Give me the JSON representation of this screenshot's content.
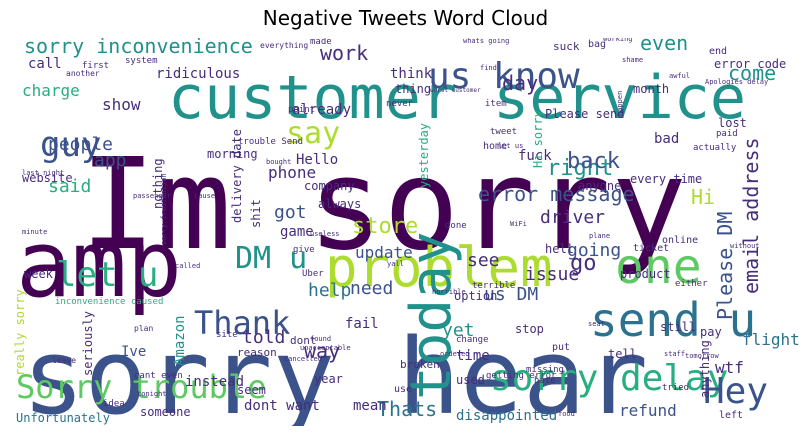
{
  "title": "Negative Tweets Word Cloud",
  "palette": [
    "#440154",
    "#472d7b",
    "#3b528b",
    "#2c728e",
    "#21918c",
    "#28ae80",
    "#5ec962",
    "#addc30",
    "#fde725"
  ],
  "words": [
    {
      "text": "Im sorry",
      "color": "#440154"
    },
    {
      "text": "customer service",
      "color": "#21918c"
    },
    {
      "text": "sorry hear",
      "color": "#3b528b"
    },
    {
      "text": "amp",
      "color": "#440154"
    },
    {
      "text": "problem",
      "color": "#addc30"
    },
    {
      "text": "today",
      "color": "#21918c"
    },
    {
      "text": "one",
      "color": "#5ec962"
    },
    {
      "text": "send u",
      "color": "#2c728e"
    },
    {
      "text": "us know",
      "color": "#3b528b"
    },
    {
      "text": "Sorry trouble",
      "color": "#5ec962"
    },
    {
      "text": "sorry delay",
      "color": "#28ae80"
    },
    {
      "text": "Hey",
      "color": "#3b528b"
    },
    {
      "text": "Thank",
      "color": "#3b528b"
    },
    {
      "text": "let u",
      "color": "#28ae80"
    },
    {
      "text": "DM u",
      "color": "#21918c"
    },
    {
      "text": "say",
      "color": "#addc30"
    },
    {
      "text": "guy",
      "color": "#3b528b"
    },
    {
      "text": "sorry inconvenience",
      "color": "#21918c"
    },
    {
      "text": "store",
      "color": "#addc30"
    },
    {
      "text": "work",
      "color": "#472d7b"
    },
    {
      "text": "day",
      "color": "#472d7b"
    },
    {
      "text": "right",
      "color": "#21918c"
    },
    {
      "text": "back",
      "color": "#3b528b"
    },
    {
      "text": "come",
      "color": "#21918c"
    },
    {
      "text": "even",
      "color": "#21918c"
    },
    {
      "text": "error message",
      "color": "#3b528b"
    },
    {
      "text": "Please DM",
      "color": "#3b528b"
    },
    {
      "text": "email address",
      "color": "#472d7b"
    },
    {
      "text": "driver",
      "color": "#472d7b"
    },
    {
      "text": "going",
      "color": "#3b528b"
    },
    {
      "text": "go",
      "color": "#472d7b"
    },
    {
      "text": "issue",
      "color": "#472d7b"
    },
    {
      "text": "us DM",
      "color": "#3b528b"
    },
    {
      "text": "see",
      "color": "#472d7b"
    },
    {
      "text": "update",
      "color": "#3b528b"
    },
    {
      "text": "need",
      "color": "#3b528b"
    },
    {
      "text": "help",
      "color": "#2c728e"
    },
    {
      "text": "way",
      "color": "#472d7b"
    },
    {
      "text": "told",
      "color": "#472d7b"
    },
    {
      "text": "yet",
      "color": "#21918c"
    },
    {
      "text": "Thats",
      "color": "#2c728e"
    },
    {
      "text": "refund",
      "color": "#3b528b"
    },
    {
      "text": "wtf",
      "color": "#472d7b"
    },
    {
      "text": "flight",
      "color": "#2c728e"
    },
    {
      "text": "people",
      "color": "#3b528b"
    },
    {
      "text": "app",
      "color": "#3b528b"
    },
    {
      "text": "said",
      "color": "#28ae80"
    },
    {
      "text": "charge",
      "color": "#28ae80"
    },
    {
      "text": "show",
      "color": "#472d7b"
    },
    {
      "text": "call",
      "color": "#472d7b"
    },
    {
      "text": "phone",
      "color": "#472d7b"
    },
    {
      "text": "got",
      "color": "#3b528b"
    },
    {
      "text": "game",
      "color": "#472d7b"
    },
    {
      "text": "Hello",
      "color": "#472d7b"
    },
    {
      "text": "already",
      "color": "#472d7b"
    },
    {
      "text": "think",
      "color": "#472d7b"
    },
    {
      "text": "thing",
      "color": "#472d7b"
    },
    {
      "text": "ridiculous",
      "color": "#472d7b"
    },
    {
      "text": "Hi",
      "color": "#addc30"
    },
    {
      "text": "fuck",
      "color": "#472d7b"
    },
    {
      "text": "bad",
      "color": "#472d7b"
    },
    {
      "text": "every time",
      "color": "#472d7b"
    },
    {
      "text": "error code",
      "color": "#472d7b"
    },
    {
      "text": "month",
      "color": "#472d7b"
    },
    {
      "text": "Ive",
      "color": "#3b528b"
    },
    {
      "text": "Amazon",
      "color": "#21918c"
    },
    {
      "text": "instead",
      "color": "#472d7b"
    },
    {
      "text": "seem",
      "color": "#472d7b"
    },
    {
      "text": "dont want",
      "color": "#472d7b"
    },
    {
      "text": "mean",
      "color": "#472d7b"
    },
    {
      "text": "disappointed",
      "color": "#2c728e"
    },
    {
      "text": "time",
      "color": "#472d7b"
    },
    {
      "text": "fail",
      "color": "#472d7b"
    },
    {
      "text": "week",
      "color": "#472d7b"
    },
    {
      "text": "really sorry",
      "color": "#addc30"
    },
    {
      "text": "seriously",
      "color": "#472d7b"
    },
    {
      "text": "Unfortunately",
      "color": "#2c728e"
    },
    {
      "text": "inconvenience caused",
      "color": "#28ae80"
    },
    {
      "text": "someone",
      "color": "#472d7b"
    },
    {
      "text": "year",
      "color": "#472d7b"
    },
    {
      "text": "delivery date",
      "color": "#472d7b"
    },
    {
      "text": "nothing",
      "color": "#472d7b"
    },
    {
      "text": "morning",
      "color": "#472d7b"
    },
    {
      "text": "always",
      "color": "#472d7b"
    },
    {
      "text": "shit",
      "color": "#472d7b"
    },
    {
      "text": "website",
      "color": "#472d7b"
    },
    {
      "text": "yesterday",
      "color": "#28ae80"
    },
    {
      "text": "anyone",
      "color": "#472d7b"
    },
    {
      "text": "company",
      "color": "#472d7b"
    },
    {
      "text": "anything",
      "color": "#472d7b"
    },
    {
      "text": "pay",
      "color": "#472d7b"
    },
    {
      "text": "tell",
      "color": "#472d7b"
    },
    {
      "text": "stop",
      "color": "#472d7b"
    },
    {
      "text": "option",
      "color": "#472d7b"
    },
    {
      "text": "product",
      "color": "#472d7b"
    },
    {
      "text": "used",
      "color": "#472d7b"
    },
    {
      "text": "hell",
      "color": "#472d7b"
    },
    {
      "text": "still",
      "color": "#472d7b"
    },
    {
      "text": "lost",
      "color": "#472d7b"
    },
    {
      "text": "Hi sorry",
      "color": "#28ae80"
    },
    {
      "text": "Please send",
      "color": "#472d7b"
    },
    {
      "text": "home",
      "color": "#472d7b"
    },
    {
      "text": "suck",
      "color": "#472d7b"
    },
    {
      "text": "made",
      "color": "#472d7b"
    },
    {
      "text": "system",
      "color": "#472d7b"
    },
    {
      "text": "first",
      "color": "#472d7b"
    },
    {
      "text": "another",
      "color": "#472d7b"
    },
    {
      "text": "trouble Send",
      "color": "#472d7b"
    },
    {
      "text": "point",
      "color": "#472d7b"
    },
    {
      "text": "never",
      "color": "#472d7b"
    },
    {
      "text": "actually",
      "color": "#472d7b"
    },
    {
      "text": "paid",
      "color": "#472d7b"
    },
    {
      "text": "end",
      "color": "#472d7b"
    },
    {
      "text": "bag",
      "color": "#472d7b"
    },
    {
      "text": "item",
      "color": "#472d7b"
    },
    {
      "text": "tweet",
      "color": "#472d7b"
    },
    {
      "text": "dont",
      "color": "#472d7b"
    },
    {
      "text": "reason",
      "color": "#472d7b"
    },
    {
      "text": "broken",
      "color": "#472d7b"
    },
    {
      "text": "use",
      "color": "#472d7b"
    },
    {
      "text": "put",
      "color": "#472d7b"
    },
    {
      "text": "online",
      "color": "#472d7b"
    },
    {
      "text": "ticket",
      "color": "#472d7b"
    },
    {
      "text": "done",
      "color": "#472d7b"
    },
    {
      "text": "give",
      "color": "#472d7b"
    },
    {
      "text": "left",
      "color": "#472d7b"
    },
    {
      "text": "tried",
      "color": "#472d7b"
    },
    {
      "text": "idea",
      "color": "#472d7b"
    },
    {
      "text": "cant even",
      "color": "#472d7b"
    },
    {
      "text": "getting error",
      "color": "#472d7b"
    },
    {
      "text": "missing",
      "color": "#472d7b"
    },
    {
      "text": "hate",
      "color": "#472d7b"
    },
    {
      "text": "change",
      "color": "#472d7b"
    },
    {
      "text": "site",
      "color": "#472d7b"
    },
    {
      "text": "plan",
      "color": "#472d7b"
    },
    {
      "text": "leave",
      "color": "#472d7b"
    },
    {
      "text": "everything",
      "color": "#472d7b"
    },
    {
      "text": "working",
      "color": "#472d7b"
    },
    {
      "text": "whats going",
      "color": "#472d7b"
    },
    {
      "text": "awful",
      "color": "#472d7b"
    },
    {
      "text": "cancelled",
      "color": "#472d7b"
    },
    {
      "text": "unacceptable",
      "color": "#472d7b"
    },
    {
      "text": "Uber",
      "color": "#472d7b"
    },
    {
      "text": "tomorrow",
      "color": "#472d7b"
    },
    {
      "text": "staff",
      "color": "#472d7b"
    },
    {
      "text": "either",
      "color": "#472d7b"
    },
    {
      "text": "without",
      "color": "#472d7b"
    },
    {
      "text": "terrible",
      "color": "#472d7b"
    },
    {
      "text": "horrible",
      "color": "#472d7b"
    },
    {
      "text": "seat",
      "color": "#472d7b"
    },
    {
      "text": "sorry frustration",
      "color": "#472d7b"
    },
    {
      "text": "passenger",
      "color": "#472d7b"
    },
    {
      "text": "minute",
      "color": "#472d7b"
    },
    {
      "text": "last night",
      "color": "#472d7b"
    },
    {
      "text": "worst customer",
      "color": "#472d7b"
    },
    {
      "text": "plane",
      "color": "#472d7b"
    },
    {
      "text": "cause",
      "color": "#472d7b"
    },
    {
      "text": "found",
      "color": "#472d7b"
    },
    {
      "text": "ordered",
      "color": "#472d7b"
    },
    {
      "text": "useless",
      "color": "#472d7b"
    },
    {
      "text": "yall",
      "color": "#472d7b"
    },
    {
      "text": "called",
      "color": "#472d7b"
    },
    {
      "text": "tonight",
      "color": "#472d7b"
    },
    {
      "text": "food",
      "color": "#472d7b"
    },
    {
      "text": "WiFi",
      "color": "#472d7b"
    },
    {
      "text": "Apologies delay",
      "color": "#472d7b"
    },
    {
      "text": "happen",
      "color": "#472d7b"
    },
    {
      "text": "shame",
      "color": "#472d7b"
    },
    {
      "text": "find",
      "color": "#472d7b"
    },
    {
      "text": "bought",
      "color": "#472d7b"
    },
    {
      "text": "let us",
      "color": "#472d7b"
    }
  ]
}
